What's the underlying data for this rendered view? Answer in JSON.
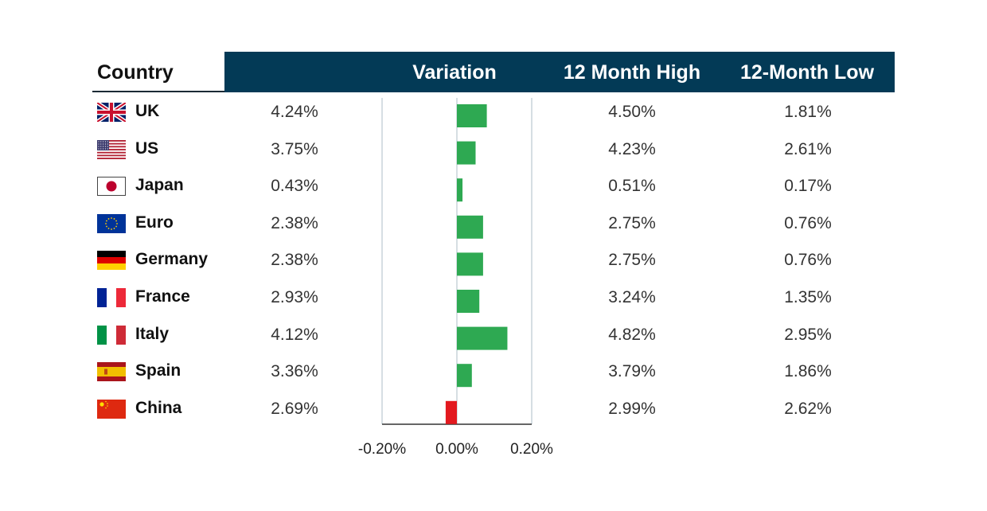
{
  "header": {
    "country": "Country",
    "variation": "Variation",
    "high": "12 Month High",
    "low": "12-Month Low"
  },
  "rows": [
    {
      "country": "UK",
      "flag_icon": "uk-flag-icon",
      "value": "4.24%",
      "high": "4.50%",
      "low": "1.81%"
    },
    {
      "country": "US",
      "flag_icon": "us-flag-icon",
      "value": "3.75%",
      "high": "4.23%",
      "low": "2.61%"
    },
    {
      "country": "Japan",
      "flag_icon": "japan-flag-icon",
      "value": "0.43%",
      "high": "0.51%",
      "low": "0.17%"
    },
    {
      "country": "Euro",
      "flag_icon": "eu-flag-icon",
      "value": "2.38%",
      "high": "2.75%",
      "low": "0.76%"
    },
    {
      "country": "Germany",
      "flag_icon": "germany-flag-icon",
      "value": "2.38%",
      "high": "2.75%",
      "low": "0.76%"
    },
    {
      "country": "France",
      "flag_icon": "france-flag-icon",
      "value": "2.93%",
      "high": "3.24%",
      "low": "1.35%"
    },
    {
      "country": "Italy",
      "flag_icon": "italy-flag-icon",
      "value": "4.12%",
      "high": "4.82%",
      "low": "2.95%"
    },
    {
      "country": "Spain",
      "flag_icon": "spain-flag-icon",
      "value": "3.36%",
      "high": "3.79%",
      "low": "1.86%"
    },
    {
      "country": "China",
      "flag_icon": "china-flag-icon",
      "value": "2.69%",
      "high": "2.99%",
      "low": "2.62%"
    }
  ],
  "chart_data": {
    "type": "bar",
    "orientation": "horizontal",
    "categories": [
      "UK",
      "US",
      "Japan",
      "Euro",
      "Germany",
      "France",
      "Italy",
      "Spain",
      "China"
    ],
    "values": [
      0.08,
      0.05,
      0.015,
      0.07,
      0.07,
      0.06,
      0.135,
      0.04,
      -0.03
    ],
    "xlim": [
      -0.2,
      0.2
    ],
    "ticks": [
      "-0.20%",
      "0.00%",
      "0.20%"
    ],
    "grid": false,
    "colors": {
      "positive": "#2ea952",
      "negative": "#e3191f"
    }
  },
  "colors": {
    "header_bg": "#033a56",
    "header_text": "#ffffff"
  }
}
